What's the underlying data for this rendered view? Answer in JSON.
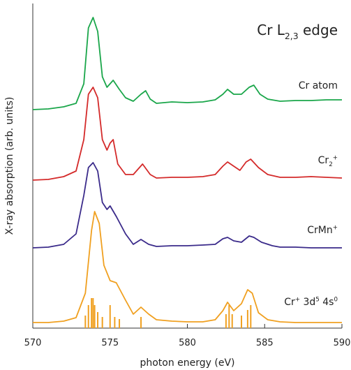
{
  "chart_data": {
    "type": "line",
    "title_parts": [
      {
        "text": "Cr L"
      },
      {
        "sub": "2,3"
      },
      {
        "text": " edge"
      }
    ],
    "xlabel": "photon energy (eV)",
    "ylabel": "X-ray absorption (arb. units)",
    "xlim": [
      570,
      590
    ],
    "xticks": [
      570,
      575,
      580,
      585,
      590
    ],
    "ylim": [
      0,
      465
    ],
    "series": [
      {
        "label_parts": [
          {
            "text": "Cr atom"
          }
        ],
        "color": "#1aa64a",
        "x": [
          570,
          571,
          572,
          572.8,
          573.3,
          573.6,
          573.9,
          574.2,
          574.5,
          574.8,
          575.2,
          575.6,
          576,
          576.5,
          577,
          577.3,
          577.6,
          578,
          579,
          580,
          581,
          581.8,
          582.3,
          582.6,
          583,
          583.5,
          584,
          584.3,
          584.7,
          585.2,
          586,
          587,
          588,
          589,
          590
        ],
        "values": [
          313,
          314,
          317,
          322,
          350,
          430,
          445,
          425,
          360,
          345,
          355,
          342,
          330,
          325,
          335,
          340,
          328,
          322,
          324,
          323,
          324,
          327,
          335,
          342,
          335,
          335,
          345,
          348,
          335,
          328,
          325,
          326,
          326,
          327,
          327
        ]
      },
      {
        "label_parts": [
          {
            "text": "Cr"
          },
          {
            "sub": "2"
          },
          {
            "sup": "+"
          }
        ],
        "color": "#d42a2a",
        "x": [
          570,
          571,
          572,
          572.8,
          573.3,
          573.6,
          573.9,
          574.2,
          574.5,
          574.8,
          575,
          575.2,
          575.5,
          576,
          576.5,
          577.1,
          577.6,
          578,
          579,
          580,
          581,
          581.8,
          582.3,
          582.6,
          583,
          583.4,
          583.8,
          584.1,
          584.6,
          585.2,
          586,
          587,
          588,
          589,
          590
        ],
        "values": [
          212,
          213,
          217,
          225,
          270,
          335,
          345,
          330,
          270,
          255,
          265,
          270,
          235,
          220,
          220,
          235,
          220,
          215,
          216,
          216,
          217,
          220,
          232,
          238,
          232,
          226,
          238,
          242,
          230,
          220,
          216,
          216,
          217,
          216,
          215
        ]
      },
      {
        "label_parts": [
          {
            "text": "CrMn"
          },
          {
            "sup": "+"
          }
        ],
        "color": "#3a2a8a",
        "x": [
          570,
          571,
          572,
          572.8,
          573.3,
          573.6,
          573.9,
          574.2,
          574.5,
          574.8,
          575,
          575.4,
          576,
          576.5,
          577,
          577.5,
          578,
          579,
          580,
          581,
          581.8,
          582.3,
          582.6,
          583,
          583.5,
          584,
          584.3,
          584.8,
          585.5,
          586,
          587,
          588,
          589,
          590
        ],
        "values": [
          115,
          116,
          120,
          135,
          190,
          230,
          237,
          225,
          180,
          170,
          175,
          160,
          135,
          120,
          127,
          120,
          117,
          118,
          118,
          119,
          120,
          128,
          130,
          125,
          123,
          132,
          130,
          123,
          118,
          116,
          116,
          115,
          115,
          115
        ]
      },
      {
        "label_parts": [
          {
            "text": "Cr"
          },
          {
            "sup": "+"
          },
          {
            "text": " 3d"
          },
          {
            "sup": "5"
          },
          {
            "text": " 4s"
          },
          {
            "sup": "0"
          }
        ],
        "color": "#f0a020",
        "x": [
          570,
          571,
          572,
          572.8,
          573.4,
          573.8,
          574.0,
          574.3,
          574.6,
          575,
          575.4,
          576,
          576.5,
          577,
          577.5,
          578,
          579,
          580,
          581,
          581.8,
          582.3,
          582.6,
          583,
          583.5,
          583.9,
          584.2,
          584.6,
          585.2,
          586,
          587,
          588,
          589,
          590
        ],
        "values": [
          8,
          8,
          10,
          15,
          50,
          140,
          167,
          150,
          90,
          68,
          65,
          40,
          20,
          30,
          20,
          12,
          10,
          9,
          9,
          12,
          25,
          37,
          25,
          35,
          55,
          50,
          22,
          12,
          9,
          8,
          8,
          8,
          8
        ]
      }
    ],
    "sticks": {
      "color": "#f0a020",
      "x": [
        573.4,
        573.6,
        573.8,
        573.9,
        574.0,
        574.2,
        574.5,
        575.0,
        575.3,
        575.6,
        577.0,
        582.5,
        582.7,
        582.9,
        583.5,
        583.9,
        584.1
      ],
      "values": [
        18,
        33,
        43,
        43,
        33,
        23,
        16,
        33,
        16,
        13,
        16,
        20,
        33,
        20,
        18,
        26,
        33
      ]
    }
  }
}
